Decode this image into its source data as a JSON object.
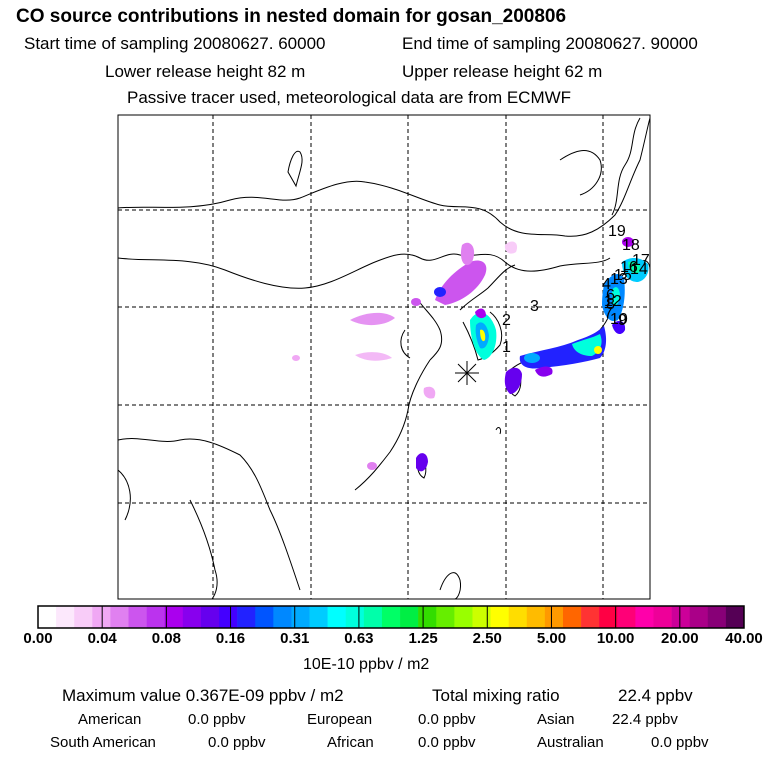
{
  "header": {
    "title": "CO  source contributions in nested domain for gosan_200806",
    "start_time": "Start time of sampling 20080627. 60000",
    "end_time": "End time of sampling 20080627. 90000",
    "lower_height": "Lower release height   82 m",
    "upper_height": "Upper release height   62 m",
    "tracer_note": "Passive tracer used, meteorological data are from ECMWF"
  },
  "map": {
    "receptor_symbol": "*",
    "trajectory_labels": [
      "1",
      "2",
      "3",
      "4",
      "6",
      "7",
      "8",
      "9",
      "10",
      "12",
      "13",
      "14",
      "15",
      "16",
      "17",
      "18",
      "19"
    ]
  },
  "colorbar": {
    "tick_labels": [
      "0.00",
      "0.04",
      "0.08",
      "0.16",
      "0.31",
      "0.63",
      "1.25",
      "2.50",
      "5.00",
      "10.00",
      "20.00",
      "40.00"
    ],
    "units": "10E-10 ppbv / m2",
    "colors": [
      "#ffffff",
      "#fce8fc",
      "#f8ccf8",
      "#f0a8f4",
      "#e080f0",
      "#cc55ee",
      "#bb33ee",
      "#aa00ee",
      "#8800ee",
      "#6600ee",
      "#4400ff",
      "#2222ff",
      "#0055ff",
      "#0088ff",
      "#00aaff",
      "#00ccff",
      "#00ffff",
      "#00ffdd",
      "#00ffaa",
      "#00ff66",
      "#00ee44",
      "#33dd00",
      "#66ee00",
      "#99ff00",
      "#ccff00",
      "#ffff00",
      "#ffdd00",
      "#ffbb00",
      "#ff9900",
      "#ff6600",
      "#ff3333",
      "#ff0044",
      "#ff0077",
      "#ff00aa",
      "#ee0099",
      "#cc0099",
      "#aa0088",
      "#880077",
      "#550055"
    ]
  },
  "stats": {
    "max_value": "Maximum value  0.367E-09 ppbv / m2",
    "total_mixing": "Total mixing ratio",
    "total_value": "22.4 ppbv",
    "american_label": "American",
    "american_value": "0.0 ppbv",
    "european_label": "European",
    "european_value": "0.0 ppbv",
    "asian_label": "Asian",
    "asian_value": "22.4 ppbv",
    "south_american_label": "South American",
    "south_american_value": "0.0 ppbv",
    "african_label": "African",
    "african_value": "0.0 ppbv",
    "australian_label": "Australian",
    "australian_value": "0.0 ppbv"
  }
}
